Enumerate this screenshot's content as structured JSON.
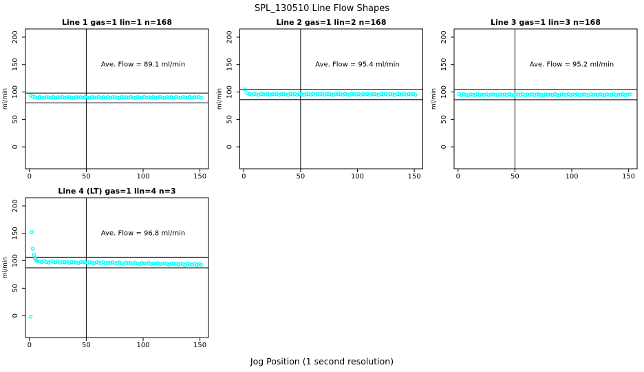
{
  "figure": {
    "background": "#FFFFFF",
    "axis_color": "#000000",
    "marker_color": "#00FFFF"
  },
  "chart_data": {
    "type": "scatter",
    "title": "SPL_130510  Line Flow Shapes",
    "xlabel": "Jog Position (1 second resolution)",
    "ylabel": "ml/min",
    "xlim": [
      -3.5,
      157.5
    ],
    "ylim": [
      -40,
      215
    ],
    "xticks": [
      0,
      50,
      100,
      150
    ],
    "yticks": [
      0,
      50,
      100,
      150,
      200
    ],
    "grid": "off",
    "marker": "open-circle",
    "panels": [
      {
        "title": "Line 1 gas=1 lin=1 n=168",
        "annotation": "Ave. Flow =  89.1  ml/min",
        "ave_flow_ml_min": 89.1,
        "hlines": [
          98.0,
          80.2
        ],
        "vline_x": 50,
        "grid_pos": [
          0,
          0
        ],
        "points": [
          [
            1,
            93.6
          ],
          [
            3,
            91.6
          ],
          [
            5,
            90.6
          ],
          [
            7,
            89.6
          ],
          [
            9,
            91.0
          ],
          [
            11,
            90.0
          ],
          [
            13,
            89.3
          ],
          [
            15,
            90.8
          ],
          [
            17,
            90.3
          ],
          [
            19,
            89.8
          ],
          [
            21,
            91.1
          ],
          [
            23,
            89.5
          ],
          [
            25,
            90.5
          ],
          [
            27,
            90.1
          ],
          [
            29,
            90.9
          ],
          [
            31,
            89.4
          ],
          [
            33,
            90.4
          ],
          [
            35,
            90.7
          ],
          [
            37,
            89.9
          ],
          [
            39,
            89.2
          ],
          [
            41,
            90.8
          ],
          [
            43,
            90.2
          ],
          [
            45,
            90.6
          ],
          [
            47,
            89.6
          ],
          [
            49,
            91.0
          ],
          [
            51,
            90.0
          ],
          [
            53,
            89.3
          ],
          [
            55,
            90.8
          ],
          [
            57,
            90.3
          ],
          [
            59,
            89.8
          ],
          [
            61,
            91.1
          ],
          [
            63,
            89.5
          ],
          [
            65,
            90.5
          ],
          [
            67,
            90.1
          ],
          [
            69,
            90.9
          ],
          [
            71,
            89.4
          ],
          [
            73,
            90.4
          ],
          [
            75,
            90.7
          ],
          [
            77,
            89.9
          ],
          [
            79,
            89.2
          ],
          [
            81,
            90.8
          ],
          [
            83,
            90.2
          ],
          [
            85,
            90.6
          ],
          [
            87,
            89.6
          ],
          [
            89,
            91.0
          ],
          [
            91,
            90.0
          ],
          [
            93,
            89.3
          ],
          [
            95,
            90.8
          ],
          [
            97,
            90.3
          ],
          [
            99,
            89.8
          ],
          [
            101,
            91.1
          ],
          [
            103,
            89.5
          ],
          [
            105,
            90.5
          ],
          [
            107,
            90.1
          ],
          [
            109,
            90.9
          ],
          [
            111,
            89.4
          ],
          [
            113,
            90.4
          ],
          [
            115,
            90.7
          ],
          [
            117,
            89.9
          ],
          [
            119,
            89.2
          ],
          [
            121,
            90.8
          ],
          [
            123,
            90.2
          ],
          [
            125,
            90.6
          ],
          [
            127,
            89.6
          ],
          [
            129,
            91.0
          ],
          [
            131,
            90.0
          ],
          [
            133,
            89.3
          ],
          [
            135,
            90.8
          ],
          [
            137,
            90.3
          ],
          [
            139,
            89.8
          ],
          [
            141,
            91.1
          ],
          [
            143,
            89.5
          ],
          [
            145,
            90.5
          ],
          [
            147,
            90.1
          ],
          [
            149,
            90.9
          ],
          [
            151,
            89.4
          ]
        ]
      },
      {
        "title": "Line 2 gas=1 lin=2 n=168",
        "annotation": "Ave. Flow =  95.4  ml/min",
        "ave_flow_ml_min": 95.4,
        "hlines": [
          104.9,
          85.9
        ],
        "vline_x": 50,
        "grid_pos": [
          1,
          0
        ],
        "points": [
          [
            1,
            104.6
          ],
          [
            3,
            97.6
          ],
          [
            5,
            96.2
          ],
          [
            7,
            95.2
          ],
          [
            9,
            96.6
          ],
          [
            11,
            95.6
          ],
          [
            13,
            94.9
          ],
          [
            15,
            96.4
          ],
          [
            17,
            95.9
          ],
          [
            19,
            95.4
          ],
          [
            21,
            96.7
          ],
          [
            23,
            95.1
          ],
          [
            25,
            96.1
          ],
          [
            27,
            95.7
          ],
          [
            29,
            96.5
          ],
          [
            31,
            95.0
          ],
          [
            33,
            96.0
          ],
          [
            35,
            96.3
          ],
          [
            37,
            95.5
          ],
          [
            39,
            94.8
          ],
          [
            41,
            96.4
          ],
          [
            43,
            95.8
          ],
          [
            45,
            96.2
          ],
          [
            47,
            95.2
          ],
          [
            49,
            96.6
          ],
          [
            51,
            95.6
          ],
          [
            53,
            94.9
          ],
          [
            55,
            96.4
          ],
          [
            57,
            95.9
          ],
          [
            59,
            95.4
          ],
          [
            61,
            96.7
          ],
          [
            63,
            95.1
          ],
          [
            65,
            96.1
          ],
          [
            67,
            95.7
          ],
          [
            69,
            96.5
          ],
          [
            71,
            95.0
          ],
          [
            73,
            96.0
          ],
          [
            75,
            96.3
          ],
          [
            77,
            95.5
          ],
          [
            79,
            94.8
          ],
          [
            81,
            96.4
          ],
          [
            83,
            95.8
          ],
          [
            85,
            96.2
          ],
          [
            87,
            95.2
          ],
          [
            89,
            96.6
          ],
          [
            91,
            95.6
          ],
          [
            93,
            94.9
          ],
          [
            95,
            96.4
          ],
          [
            97,
            95.9
          ],
          [
            99,
            95.4
          ],
          [
            101,
            96.7
          ],
          [
            103,
            95.1
          ],
          [
            105,
            96.1
          ],
          [
            107,
            95.7
          ],
          [
            109,
            96.5
          ],
          [
            111,
            95.0
          ],
          [
            113,
            96.0
          ],
          [
            115,
            96.3
          ],
          [
            117,
            95.5
          ],
          [
            119,
            94.8
          ],
          [
            121,
            96.4
          ],
          [
            123,
            95.8
          ],
          [
            125,
            96.2
          ],
          [
            127,
            95.2
          ],
          [
            129,
            96.6
          ],
          [
            131,
            95.6
          ],
          [
            133,
            94.9
          ],
          [
            135,
            96.4
          ],
          [
            137,
            95.9
          ],
          [
            139,
            95.4
          ],
          [
            141,
            96.7
          ],
          [
            143,
            95.1
          ],
          [
            145,
            96.1
          ],
          [
            147,
            95.7
          ],
          [
            149,
            96.5
          ],
          [
            151,
            95.0
          ]
        ]
      },
      {
        "title": "Line 3 gas=1 lin=3 n=168",
        "annotation": "Ave. Flow =  95.2  ml/min",
        "ave_flow_ml_min": 95.2,
        "hlines": [
          104.7,
          85.7
        ],
        "vline_x": 50,
        "grid_pos": [
          2,
          0
        ],
        "points": [
          [
            1,
            96.6
          ],
          [
            3,
            94.2
          ],
          [
            5,
            96.0
          ],
          [
            7,
            94.7
          ],
          [
            9,
            93.8
          ],
          [
            11,
            95.8
          ],
          [
            13,
            95.1
          ],
          [
            15,
            94.5
          ],
          [
            17,
            96.2
          ],
          [
            19,
            94.1
          ],
          [
            21,
            95.4
          ],
          [
            23,
            94.9
          ],
          [
            25,
            95.9
          ],
          [
            27,
            94.0
          ],
          [
            29,
            95.3
          ],
          [
            31,
            95.7
          ],
          [
            33,
            94.6
          ],
          [
            35,
            93.7
          ],
          [
            37,
            95.8
          ],
          [
            39,
            95.0
          ],
          [
            41,
            95.5
          ],
          [
            43,
            94.2
          ],
          [
            45,
            96.0
          ],
          [
            47,
            94.7
          ],
          [
            49,
            93.8
          ],
          [
            51,
            95.8
          ],
          [
            53,
            95.1
          ],
          [
            55,
            94.5
          ],
          [
            57,
            96.2
          ],
          [
            59,
            94.1
          ],
          [
            61,
            95.4
          ],
          [
            63,
            94.9
          ],
          [
            65,
            95.9
          ],
          [
            67,
            94.0
          ],
          [
            69,
            95.3
          ],
          [
            71,
            95.7
          ],
          [
            73,
            94.6
          ],
          [
            75,
            93.7
          ],
          [
            77,
            95.8
          ],
          [
            79,
            95.0
          ],
          [
            81,
            95.5
          ],
          [
            83,
            94.2
          ],
          [
            85,
            96.0
          ],
          [
            87,
            94.7
          ],
          [
            89,
            93.8
          ],
          [
            91,
            95.8
          ],
          [
            93,
            95.1
          ],
          [
            95,
            94.5
          ],
          [
            97,
            96.2
          ],
          [
            99,
            94.1
          ],
          [
            101,
            95.4
          ],
          [
            103,
            94.9
          ],
          [
            105,
            95.9
          ],
          [
            107,
            94.0
          ],
          [
            109,
            95.3
          ],
          [
            111,
            95.7
          ],
          [
            113,
            94.6
          ],
          [
            115,
            93.7
          ],
          [
            117,
            95.8
          ],
          [
            119,
            95.0
          ],
          [
            121,
            95.5
          ],
          [
            123,
            94.2
          ],
          [
            125,
            96.0
          ],
          [
            127,
            94.7
          ],
          [
            129,
            93.8
          ],
          [
            131,
            95.8
          ],
          [
            133,
            95.1
          ],
          [
            135,
            94.5
          ],
          [
            137,
            96.2
          ],
          [
            139,
            94.1
          ],
          [
            141,
            95.4
          ],
          [
            143,
            94.9
          ],
          [
            145,
            95.9
          ],
          [
            147,
            94.0
          ],
          [
            149,
            95.3
          ],
          [
            151,
            95.7
          ]
        ]
      },
      {
        "title": "Line 4 (LT) gas=1 lin=4 n=3",
        "annotation": "Ave. Flow =  96.8  ml/min",
        "ave_flow_ml_min": 96.8,
        "hlines": [
          106.5,
          87.1
        ],
        "vline_x": 50,
        "grid_pos": [
          0,
          1
        ],
        "points": [
          [
            1,
            -2.0
          ],
          [
            2,
            152.5
          ],
          [
            3,
            122.0
          ],
          [
            4,
            111.0
          ],
          [
            5,
            104.5
          ],
          [
            6,
            100.8
          ],
          [
            7,
            99.2
          ],
          [
            9,
            98.9
          ],
          [
            11,
            97.4
          ],
          [
            13,
            99.3
          ],
          [
            15,
            97.8
          ],
          [
            17,
            96.7
          ],
          [
            19,
            98.8
          ],
          [
            21,
            98.0
          ],
          [
            23,
            97.2
          ],
          [
            25,
            99.0
          ],
          [
            27,
            96.7
          ],
          [
            29,
            98.0
          ],
          [
            31,
            97.4
          ],
          [
            33,
            98.5
          ],
          [
            35,
            96.3
          ],
          [
            37,
            97.6
          ],
          [
            39,
            98.0
          ],
          [
            41,
            96.8
          ],
          [
            43,
            95.7
          ],
          [
            45,
            97.8
          ],
          [
            47,
            97.0
          ],
          [
            49,
            97.5
          ],
          [
            51,
            96.0
          ],
          [
            53,
            97.9
          ],
          [
            55,
            96.4
          ],
          [
            57,
            95.3
          ],
          [
            59,
            97.4
          ],
          [
            61,
            96.6
          ],
          [
            63,
            95.8
          ],
          [
            65,
            97.6
          ],
          [
            67,
            95.3
          ],
          [
            69,
            96.6
          ],
          [
            71,
            96.0
          ],
          [
            73,
            97.1
          ],
          [
            75,
            94.9
          ],
          [
            77,
            96.2
          ],
          [
            79,
            96.6
          ],
          [
            81,
            95.4
          ],
          [
            83,
            94.3
          ],
          [
            85,
            96.4
          ],
          [
            87,
            95.6
          ],
          [
            89,
            96.1
          ],
          [
            91,
            94.6
          ],
          [
            93,
            96.5
          ],
          [
            95,
            95.0
          ],
          [
            97,
            93.9
          ],
          [
            99,
            96.0
          ],
          [
            101,
            95.2
          ],
          [
            103,
            94.4
          ],
          [
            105,
            96.2
          ],
          [
            107,
            93.9
          ],
          [
            109,
            95.2
          ],
          [
            111,
            94.6
          ],
          [
            113,
            95.7
          ],
          [
            115,
            93.5
          ],
          [
            117,
            94.8
          ],
          [
            119,
            95.2
          ],
          [
            121,
            94.0
          ],
          [
            123,
            92.9
          ],
          [
            125,
            95.0
          ],
          [
            127,
            94.2
          ],
          [
            129,
            94.7
          ],
          [
            131,
            93.2
          ],
          [
            133,
            95.1
          ],
          [
            135,
            93.6
          ],
          [
            137,
            92.5
          ],
          [
            139,
            94.6
          ],
          [
            141,
            93.8
          ],
          [
            143,
            93.0
          ],
          [
            145,
            94.8
          ],
          [
            147,
            92.5
          ],
          [
            149,
            93.8
          ],
          [
            151,
            93.2
          ]
        ]
      }
    ]
  }
}
